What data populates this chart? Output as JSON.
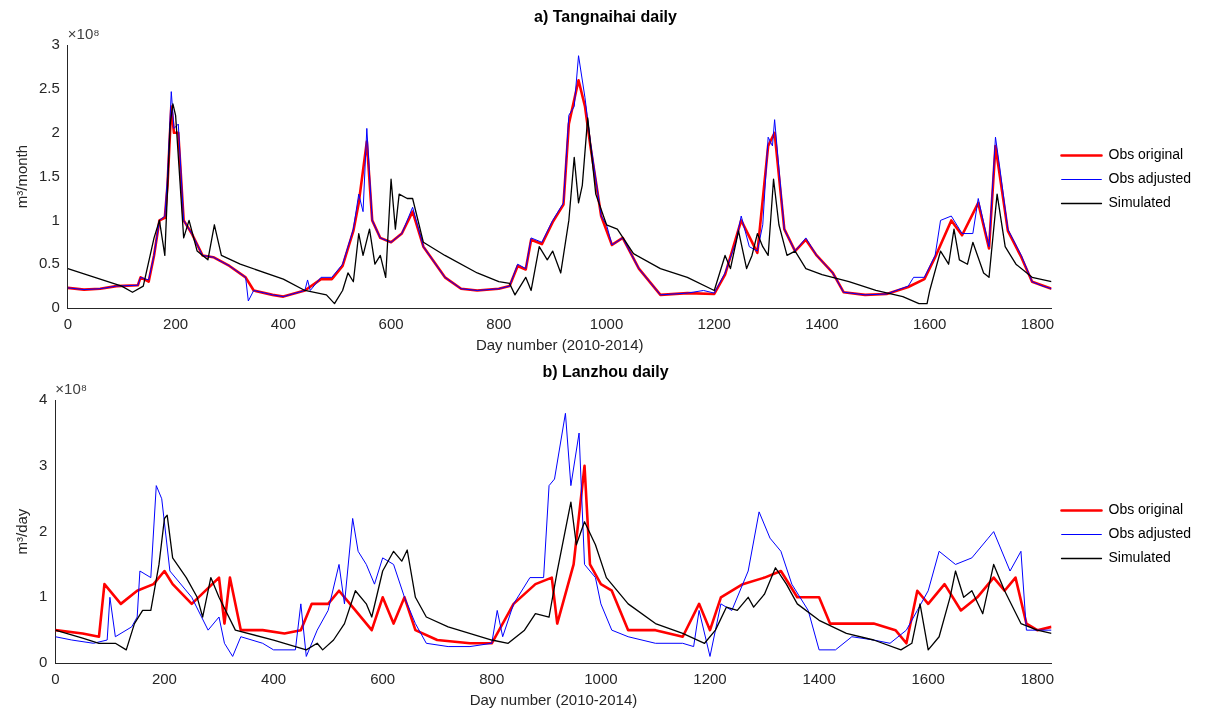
{
  "chart_data": [
    {
      "type": "line",
      "title": "a) Tangnaihai daily",
      "xlabel": "Day number (2010-2014)",
      "ylabel": "m³/month",
      "annotations": [
        "×10⁸"
      ],
      "xlim": [
        0,
        1826
      ],
      "xticks": [
        0,
        200,
        400,
        600,
        800,
        1000,
        1200,
        1400,
        1600,
        1800
      ],
      "ylim": [
        0,
        3
      ],
      "yticks": [
        0,
        0.5,
        1,
        1.5,
        2,
        2.5,
        3
      ],
      "grid": false,
      "legend": "right",
      "marker": "none",
      "line_style": "solid",
      "series": [
        {
          "name": "Obs original",
          "color": "#ff0000",
          "x": [
            0,
            30,
            60,
            90,
            130,
            135,
            150,
            160,
            170,
            180,
            185,
            192,
            197,
            205,
            215,
            230,
            250,
            270,
            300,
            330,
            345,
            380,
            400,
            440,
            470,
            490,
            510,
            530,
            540,
            555,
            565,
            580,
            600,
            620,
            640,
            660,
            700,
            730,
            760,
            800,
            820,
            835,
            850,
            860,
            880,
            900,
            920,
            930,
            948,
            960,
            970,
            990,
            1010,
            1030,
            1060,
            1100,
            1150,
            1200,
            1220,
            1250,
            1280,
            1300,
            1312,
            1330,
            1350,
            1370,
            1390,
            1420,
            1440,
            1480,
            1520,
            1560,
            1590,
            1610,
            1640,
            1660,
            1690,
            1710,
            1722,
            1745,
            1770,
            1790,
            1826
          ],
          "values": [
            0.23,
            0.21,
            0.22,
            0.25,
            0.26,
            0.35,
            0.3,
            0.6,
            1.0,
            1.03,
            1.4,
            2.3,
            2.0,
            2.0,
            1.0,
            0.85,
            0.6,
            0.58,
            0.48,
            0.35,
            0.2,
            0.15,
            0.13,
            0.2,
            0.33,
            0.33,
            0.48,
            0.88,
            1.2,
            1.9,
            1.0,
            0.8,
            0.75,
            0.85,
            1.1,
            0.7,
            0.35,
            0.22,
            0.2,
            0.22,
            0.25,
            0.48,
            0.44,
            0.78,
            0.73,
            0.98,
            1.18,
            2.1,
            2.6,
            2.3,
            1.85,
            1.05,
            0.72,
            0.8,
            0.45,
            0.15,
            0.17,
            0.16,
            0.38,
            1.0,
            0.63,
            1.85,
            2.0,
            0.9,
            0.65,
            0.78,
            0.6,
            0.4,
            0.18,
            0.15,
            0.16,
            0.24,
            0.33,
            0.58,
            1.0,
            0.83,
            1.2,
            0.68,
            1.85,
            0.88,
            0.58,
            0.3,
            0.22
          ]
        },
        {
          "name": "Obs adjusted",
          "color": "#0000ff",
          "x": [
            0,
            30,
            60,
            90,
            130,
            135,
            150,
            160,
            170,
            180,
            185,
            192,
            197,
            205,
            215,
            230,
            250,
            270,
            300,
            330,
            335,
            345,
            380,
            400,
            440,
            445,
            450,
            470,
            490,
            510,
            530,
            540,
            548,
            555,
            565,
            580,
            600,
            620,
            640,
            660,
            700,
            730,
            760,
            800,
            820,
            835,
            850,
            860,
            880,
            900,
            920,
            930,
            940,
            948,
            960,
            970,
            990,
            1000,
            1010,
            1030,
            1060,
            1080,
            1100,
            1150,
            1180,
            1200,
            1220,
            1240,
            1250,
            1265,
            1280,
            1290,
            1300,
            1308,
            1312,
            1330,
            1350,
            1370,
            1390,
            1420,
            1440,
            1480,
            1520,
            1560,
            1570,
            1590,
            1610,
            1620,
            1640,
            1660,
            1680,
            1690,
            1710,
            1722,
            1730,
            1745,
            1770,
            1790,
            1810,
            1826
          ],
          "values": [
            0.23,
            0.21,
            0.22,
            0.25,
            0.26,
            0.35,
            0.32,
            0.6,
            1.0,
            1.05,
            1.5,
            2.47,
            2.05,
            2.1,
            1.0,
            0.85,
            0.6,
            0.58,
            0.48,
            0.35,
            0.08,
            0.2,
            0.15,
            0.13,
            0.2,
            0.32,
            0.2,
            0.35,
            0.35,
            0.5,
            0.9,
            1.3,
            1.1,
            2.05,
            1.0,
            0.8,
            0.75,
            0.85,
            1.15,
            0.7,
            0.35,
            0.22,
            0.2,
            0.22,
            0.25,
            0.5,
            0.45,
            0.8,
            0.75,
            1.0,
            1.2,
            2.2,
            2.3,
            2.88,
            2.4,
            1.9,
            1.05,
            0.95,
            0.72,
            0.8,
            0.45,
            0.3,
            0.15,
            0.17,
            0.2,
            0.17,
            0.4,
            0.75,
            1.05,
            0.7,
            0.65,
            0.95,
            1.95,
            1.85,
            2.15,
            0.9,
            0.65,
            0.8,
            0.6,
            0.4,
            0.18,
            0.15,
            0.16,
            0.25,
            0.35,
            0.35,
            0.6,
            1.0,
            1.05,
            0.85,
            0.85,
            1.25,
            0.7,
            1.95,
            1.6,
            0.9,
            0.6,
            0.3,
            0.25,
            0.22
          ]
        },
        {
          "name": "Simulated",
          "color": "#000000",
          "x": [
            0,
            50,
            100,
            120,
            140,
            160,
            170,
            180,
            190,
            195,
            200,
            215,
            225,
            240,
            260,
            272,
            285,
            320,
            400,
            440,
            480,
            495,
            510,
            520,
            530,
            540,
            548,
            560,
            570,
            580,
            590,
            600,
            608,
            615,
            630,
            640,
            660,
            700,
            760,
            800,
            820,
            830,
            850,
            860,
            875,
            890,
            900,
            915,
            930,
            940,
            948,
            955,
            965,
            980,
            1000,
            1020,
            1050,
            1100,
            1150,
            1200,
            1220,
            1230,
            1245,
            1260,
            1270,
            1280,
            1290,
            1300,
            1310,
            1320,
            1335,
            1350,
            1370,
            1400,
            1450,
            1500,
            1550,
            1580,
            1595,
            1600,
            1620,
            1635,
            1645,
            1655,
            1670,
            1680,
            1700,
            1710,
            1725,
            1740,
            1760,
            1790,
            1826
          ],
          "values": [
            0.45,
            0.35,
            0.25,
            0.18,
            0.25,
            0.8,
            1.0,
            0.6,
            2.1,
            2.33,
            2.2,
            0.8,
            1.0,
            0.65,
            0.55,
            0.95,
            0.6,
            0.5,
            0.33,
            0.2,
            0.15,
            0.05,
            0.2,
            0.4,
            0.3,
            0.85,
            0.6,
            0.9,
            0.5,
            0.6,
            0.35,
            1.47,
            0.9,
            1.3,
            1.25,
            1.25,
            0.75,
            0.6,
            0.4,
            0.3,
            0.28,
            0.15,
            0.35,
            0.2,
            0.7,
            0.55,
            0.65,
            0.4,
            1.0,
            1.72,
            1.2,
            1.4,
            2.17,
            1.3,
            0.95,
            0.9,
            0.62,
            0.45,
            0.35,
            0.2,
            0.6,
            0.45,
            0.88,
            0.45,
            0.6,
            0.85,
            0.7,
            0.6,
            1.47,
            0.95,
            0.6,
            0.65,
            0.45,
            0.38,
            0.3,
            0.2,
            0.13,
            0.05,
            0.05,
            0.2,
            0.65,
            0.5,
            0.9,
            0.55,
            0.5,
            0.75,
            0.4,
            0.35,
            1.3,
            0.7,
            0.5,
            0.35,
            0.3
          ]
        }
      ]
    },
    {
      "type": "line",
      "title": "b) Lanzhou daily",
      "xlabel": "Day number (2010-2014)",
      "ylabel": "m³/day",
      "annotations": [
        "×10⁸"
      ],
      "xlim": [
        0,
        1826
      ],
      "xticks": [
        0,
        200,
        400,
        600,
        800,
        1000,
        1200,
        1400,
        1600,
        1800
      ],
      "ylim": [
        0,
        4
      ],
      "yticks": [
        0,
        1,
        2,
        3,
        4
      ],
      "grid": false,
      "legend": "right",
      "marker": "none",
      "line_style": "solid",
      "series": [
        {
          "name": "Obs original",
          "color": "#ff0000",
          "x": [
            0,
            50,
            80,
            90,
            120,
            150,
            180,
            200,
            215,
            250,
            300,
            310,
            320,
            340,
            380,
            420,
            450,
            470,
            500,
            520,
            550,
            580,
            600,
            620,
            640,
            660,
            700,
            760,
            800,
            840,
            880,
            910,
            920,
            950,
            970,
            980,
            1000,
            1020,
            1050,
            1100,
            1150,
            1180,
            1200,
            1220,
            1260,
            1300,
            1330,
            1360,
            1400,
            1420,
            1450,
            1500,
            1540,
            1560,
            1580,
            1600,
            1630,
            1660,
            1690,
            1720,
            1740,
            1760,
            1780,
            1800,
            1826
          ],
          "values": [
            0.5,
            0.45,
            0.4,
            1.2,
            0.9,
            1.1,
            1.2,
            1.4,
            1.2,
            0.9,
            1.3,
            0.6,
            1.3,
            0.5,
            0.5,
            0.45,
            0.5,
            0.9,
            0.9,
            1.1,
            0.8,
            0.5,
            1.0,
            0.6,
            1.0,
            0.5,
            0.35,
            0.3,
            0.3,
            0.9,
            1.2,
            1.3,
            0.6,
            1.5,
            3.0,
            1.5,
            1.2,
            1.1,
            0.5,
            0.5,
            0.4,
            0.9,
            0.5,
            1.0,
            1.2,
            1.3,
            1.4,
            1.0,
            1.0,
            0.6,
            0.6,
            0.6,
            0.5,
            0.3,
            1.1,
            0.9,
            1.2,
            0.8,
            1.0,
            1.3,
            1.1,
            1.3,
            0.6,
            0.5,
            0.55
          ]
        },
        {
          "name": "Obs adjusted",
          "color": "#0000ff",
          "x": [
            0,
            30,
            70,
            95,
            100,
            110,
            140,
            150,
            155,
            175,
            185,
            195,
            210,
            250,
            280,
            300,
            310,
            325,
            340,
            380,
            400,
            440,
            450,
            460,
            480,
            500,
            520,
            530,
            545,
            555,
            570,
            585,
            600,
            620,
            640,
            660,
            680,
            720,
            760,
            800,
            810,
            820,
            840,
            870,
            895,
            905,
            915,
            935,
            945,
            960,
            970,
            990,
            1000,
            1020,
            1050,
            1100,
            1150,
            1170,
            1180,
            1200,
            1220,
            1240,
            1270,
            1290,
            1310,
            1330,
            1350,
            1380,
            1400,
            1430,
            1460,
            1500,
            1530,
            1560,
            1580,
            1600,
            1620,
            1650,
            1680,
            1710,
            1720,
            1750,
            1770,
            1780,
            1800,
            1826
          ],
          "values": [
            0.4,
            0.35,
            0.3,
            0.35,
            1.0,
            0.4,
            0.55,
            0.7,
            1.4,
            1.3,
            2.7,
            2.5,
            1.4,
            1.0,
            0.5,
            0.7,
            0.3,
            0.1,
            0.4,
            0.3,
            0.2,
            0.2,
            0.9,
            0.1,
            0.5,
            0.8,
            1.5,
            0.9,
            2.2,
            1.7,
            1.5,
            1.2,
            1.6,
            1.5,
            1.0,
            0.6,
            0.3,
            0.25,
            0.25,
            0.3,
            0.8,
            0.4,
            0.9,
            1.3,
            1.3,
            2.7,
            2.8,
            3.8,
            2.7,
            3.5,
            1.5,
            1.3,
            0.9,
            0.5,
            0.4,
            0.3,
            0.3,
            0.25,
            0.8,
            0.1,
            0.9,
            0.8,
            1.4,
            2.3,
            1.9,
            1.7,
            1.2,
            0.8,
            0.2,
            0.2,
            0.4,
            0.35,
            0.3,
            0.5,
            0.8,
            1.1,
            1.7,
            1.5,
            1.6,
            1.9,
            2.0,
            1.4,
            1.7,
            0.5,
            0.5,
            0.5
          ]
        },
        {
          "name": "Simulated",
          "color": "#000000",
          "x": [
            0,
            50,
            80,
            110,
            130,
            145,
            160,
            175,
            190,
            200,
            205,
            215,
            240,
            260,
            270,
            285,
            300,
            330,
            400,
            460,
            480,
            490,
            510,
            530,
            550,
            570,
            580,
            600,
            620,
            635,
            645,
            660,
            680,
            720,
            800,
            830,
            860,
            880,
            905,
            920,
            945,
            955,
            970,
            990,
            1010,
            1050,
            1100,
            1150,
            1190,
            1210,
            1230,
            1250,
            1270,
            1280,
            1300,
            1320,
            1340,
            1360,
            1400,
            1450,
            1500,
            1550,
            1570,
            1585,
            1600,
            1620,
            1640,
            1650,
            1665,
            1680,
            1700,
            1720,
            1740,
            1770,
            1800,
            1826
          ],
          "values": [
            0.5,
            0.38,
            0.3,
            0.3,
            0.2,
            0.6,
            0.8,
            0.8,
            1.5,
            2.2,
            2.25,
            1.6,
            1.3,
            1.0,
            0.7,
            1.3,
            1.0,
            0.5,
            0.35,
            0.2,
            0.3,
            0.2,
            0.35,
            0.6,
            1.1,
            0.9,
            0.7,
            1.4,
            1.7,
            1.55,
            1.72,
            1.0,
            0.7,
            0.55,
            0.35,
            0.3,
            0.5,
            0.75,
            0.7,
            1.4,
            2.45,
            1.8,
            2.15,
            1.8,
            1.3,
            0.9,
            0.6,
            0.45,
            0.3,
            0.5,
            0.85,
            0.8,
            1.0,
            0.85,
            1.05,
            1.45,
            1.2,
            0.9,
            0.65,
            0.45,
            0.35,
            0.2,
            0.3,
            0.9,
            0.2,
            0.4,
            1.0,
            1.4,
            1.0,
            1.1,
            0.75,
            1.5,
            1.1,
            0.6,
            0.5,
            0.45
          ]
        }
      ]
    }
  ]
}
